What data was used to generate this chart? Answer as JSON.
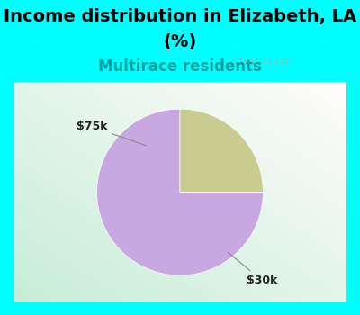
{
  "title_line1": "Income distribution in Elizabeth, LA",
  "title_line2": "(%)",
  "subtitle": "Multirace residents",
  "title_fontsize": 14,
  "subtitle_fontsize": 12,
  "title_color": "#000000",
  "subtitle_color": "#00a0a0",
  "bg_color": "#00ffff",
  "chart_bg_left": "#c8eedd",
  "chart_bg_right": "#f0f8f0",
  "slices": [
    75,
    25
  ],
  "slice_colors": [
    "#c8a8e0",
    "#c8cc90"
  ],
  "label_30k": "$30k",
  "label_75k": "$75k",
  "watermark": "City-Data.com",
  "startangle": 90
}
